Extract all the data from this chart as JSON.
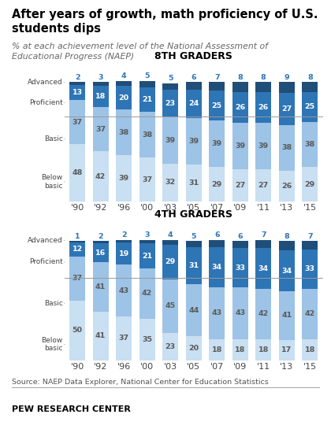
{
  "title": "After years of growth, math proficiency of U.S.\nstudents dips",
  "subtitle": "% at each achievement level of the National Assessment of\nEducational Progress (NAEP)",
  "source": "Source: NAEP Data Explorer, National Center for Education Statistics",
  "footer": "PEW RESEARCH CENTER",
  "years": [
    "'90",
    "'92",
    "'96",
    "'00",
    "'03",
    "'05",
    "'07",
    "'09",
    "'11",
    "'13",
    "'15"
  ],
  "grade8": {
    "title": "8TH GRADERS",
    "advanced": [
      2,
      3,
      4,
      5,
      5,
      6,
      7,
      8,
      8,
      9,
      8
    ],
    "proficient": [
      13,
      18,
      20,
      21,
      23,
      24,
      25,
      26,
      26,
      27,
      25
    ],
    "basic": [
      37,
      37,
      38,
      38,
      39,
      39,
      39,
      39,
      39,
      38,
      38
    ],
    "below_basic": [
      48,
      42,
      39,
      37,
      32,
      31,
      29,
      27,
      27,
      26,
      29
    ]
  },
  "grade4": {
    "title": "4TH GRADERS",
    "advanced": [
      1,
      2,
      2,
      3,
      4,
      5,
      6,
      6,
      7,
      8,
      7
    ],
    "proficient": [
      12,
      16,
      19,
      21,
      29,
      31,
      34,
      33,
      34,
      34,
      33
    ],
    "basic": [
      37,
      41,
      43,
      42,
      45,
      44,
      43,
      43,
      42,
      41,
      42
    ],
    "below_basic": [
      50,
      41,
      37,
      35,
      23,
      20,
      18,
      18,
      18,
      17,
      18
    ]
  },
  "colors": {
    "advanced": "#1f4e79",
    "proficient": "#2e75b6",
    "basic": "#9dc3e6",
    "below_basic": "#c9dff2"
  },
  "text_colors": {
    "advanced_label": "#2e75b6",
    "proficient_label": "#ffffff",
    "basic_label": "#595959",
    "below_basic_label": "#595959"
  },
  "bar_width": 0.68,
  "ylim": 115
}
